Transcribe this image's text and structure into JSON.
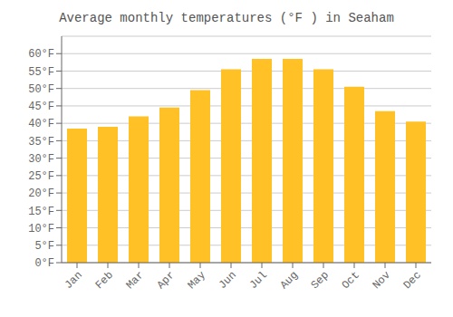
{
  "chart_data": {
    "type": "bar",
    "title": "Average monthly temperatures (°F ) in Seaham",
    "categories": [
      "Jan",
      "Feb",
      "Mar",
      "Apr",
      "May",
      "Jun",
      "Jul",
      "Aug",
      "Sep",
      "Oct",
      "Nov",
      "Dec"
    ],
    "values": [
      38.5,
      39.0,
      42.0,
      44.5,
      49.5,
      55.5,
      58.5,
      58.5,
      55.5,
      50.5,
      43.5,
      40.5
    ],
    "color": "#FFC125",
    "ylim": [
      0,
      65
    ],
    "yticks": [
      {
        "value": 0,
        "label": "0°F"
      },
      {
        "value": 5,
        "label": "5°F"
      },
      {
        "value": 10,
        "label": "10°F"
      },
      {
        "value": 15,
        "label": "15°F"
      },
      {
        "value": 20,
        "label": "20°F"
      },
      {
        "value": 25,
        "label": "25°F"
      },
      {
        "value": 30,
        "label": "30°F"
      },
      {
        "value": 35,
        "label": "35°F"
      },
      {
        "value": 40,
        "label": "40°F"
      },
      {
        "value": 45,
        "label": "45°F"
      },
      {
        "value": 50,
        "label": "50°F"
      },
      {
        "value": 55,
        "label": "55°F"
      },
      {
        "value": 60,
        "label": "60°F"
      }
    ],
    "grid": true
  }
}
